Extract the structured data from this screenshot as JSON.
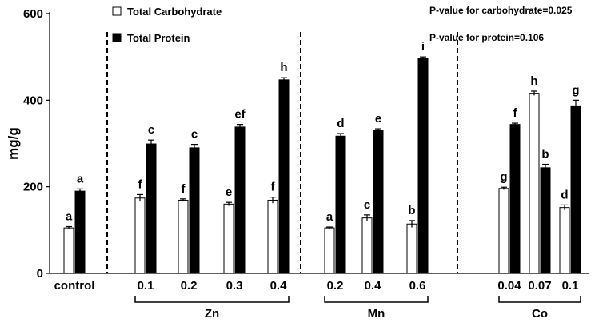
{
  "chart_data": {
    "type": "bar",
    "ylabel": "mg/g",
    "ylim": [
      0,
      600
    ],
    "yticks": [
      0,
      200,
      400,
      600
    ],
    "categories": [
      "control",
      "0.1",
      "0.2",
      "0.3",
      "0.4",
      "0.2",
      "0.4",
      "0.6",
      "0.04",
      "0.07",
      "0.1"
    ],
    "groups": [
      {
        "label": "Zn",
        "from": 1,
        "to": 4
      },
      {
        "label": "Mn",
        "from": 5,
        "to": 7
      },
      {
        "label": "Co",
        "from": 8,
        "to": 10
      }
    ],
    "series": [
      {
        "name": "Total Carbohydrate",
        "fill": "#ffffff",
        "values": [
          105,
          174,
          169,
          160,
          169,
          105,
          128,
          114,
          196,
          416,
          152
        ],
        "errors": [
          3,
          8,
          3,
          4,
          7,
          2,
          7,
          8,
          3,
          5,
          6
        ],
        "letters": [
          "a",
          "f",
          "f",
          "e",
          "f",
          "a",
          "c",
          "b",
          "g",
          "h",
          "d"
        ]
      },
      {
        "name": "Total Protein",
        "fill": "#000000",
        "values": [
          190,
          299,
          290,
          338,
          447,
          317,
          331,
          496,
          344,
          244,
          387
        ],
        "errors": [
          5,
          9,
          8,
          6,
          5,
          6,
          3,
          4,
          3,
          8,
          13
        ],
        "letters": [
          "a",
          "c",
          "c",
          "ef",
          "h",
          "d",
          "e",
          "i",
          "f",
          "b",
          "g"
        ]
      }
    ],
    "annotations": [
      "P-value for carbohydrate=0.025",
      "P-value for protein=0.106"
    ],
    "legend": "top-left"
  }
}
